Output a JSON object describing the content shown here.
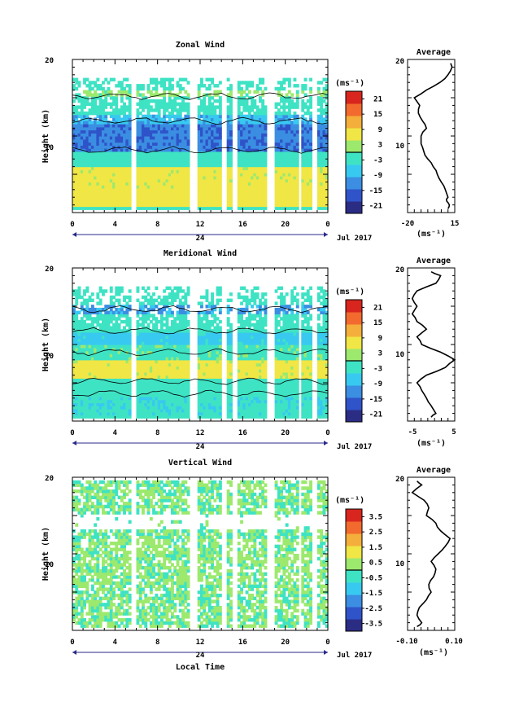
{
  "chart_data": [
    {
      "type": "heatmap",
      "title": "Zonal Wind",
      "ylabel": "Height (km)",
      "ylim": [
        0,
        20
      ],
      "xlim": [
        0,
        24
      ],
      "x_ticks": [
        "0",
        "4",
        "8",
        "12",
        "16",
        "20",
        "0"
      ],
      "y_ticks": [
        "20",
        "10"
      ],
      "date_mid": "24",
      "date_right": "Jul 2017",
      "colorbar": {
        "unit": "(ms⁻¹)",
        "ticks": [
          "21",
          "15",
          "9",
          "3",
          "-3",
          "-9",
          "-15",
          "-21"
        ],
        "range": [
          -24,
          24
        ]
      },
      "layers": [
        {
          "from": 0.5,
          "to": 3,
          "value": 7
        },
        {
          "from": 3,
          "to": 6,
          "value": 6
        },
        {
          "from": 6,
          "to": 8,
          "value": -2
        },
        {
          "from": 8,
          "to": 11.5,
          "value": -14
        },
        {
          "from": 11.5,
          "to": 12.5,
          "value": -9
        },
        {
          "from": 12.5,
          "to": 15,
          "value": -2
        },
        {
          "from": 15,
          "to": 16,
          "value": 1
        },
        {
          "from": 16,
          "to": 17.5,
          "value": -2
        }
      ],
      "profile": {
        "title": "Average",
        "xlim": [
          -20,
          15
        ],
        "x_ticks": [
          "-20",
          "15"
        ],
        "xlabel": "(ms⁻¹)",
        "points": [
          [
            10,
            0.5
          ],
          [
            11,
            1
          ],
          [
            9,
            1.5
          ],
          [
            10,
            2
          ],
          [
            8,
            3
          ],
          [
            5,
            4
          ],
          [
            2,
            5
          ],
          [
            -1,
            6
          ],
          [
            -5,
            7
          ],
          [
            -8,
            8
          ],
          [
            -10,
            9
          ],
          [
            -10,
            10
          ],
          [
            -6,
            11
          ],
          [
            -9,
            12
          ],
          [
            -12,
            13
          ],
          [
            -11,
            14
          ],
          [
            -15,
            15
          ],
          [
            -6,
            16
          ],
          [
            4,
            17
          ],
          [
            10,
            18
          ],
          [
            13,
            19
          ],
          [
            12,
            19.5
          ]
        ]
      }
    },
    {
      "type": "heatmap",
      "title": "Meridional Wind",
      "ylabel": "Height (km)",
      "ylim": [
        0,
        20
      ],
      "xlim": [
        0,
        24
      ],
      "x_ticks": [
        "0",
        "4",
        "8",
        "12",
        "16",
        "20",
        "0"
      ],
      "y_ticks": [
        "20",
        "10"
      ],
      "date_mid": "24",
      "date_right": "Jul 2017",
      "colorbar": {
        "unit": "(ms⁻¹)",
        "ticks": [
          "21",
          "15",
          "9",
          "3",
          "-3",
          "-9",
          "-15",
          "-21"
        ],
        "range": [
          -24,
          24
        ]
      },
      "layers": [
        {
          "from": 0.5,
          "to": 3,
          "value": -4
        },
        {
          "from": 3,
          "to": 5.5,
          "value": -2
        },
        {
          "from": 5.5,
          "to": 8,
          "value": 6
        },
        {
          "from": 8,
          "to": 10,
          "value": -1
        },
        {
          "from": 10,
          "to": 11.5,
          "value": -6
        },
        {
          "from": 11.5,
          "to": 14,
          "value": -3
        },
        {
          "from": 14,
          "to": 15,
          "value": -10
        },
        {
          "from": 15,
          "to": 16.5,
          "value": -2
        }
      ],
      "profile": {
        "title": "Average",
        "xlim": [
          -5,
          5
        ],
        "x_ticks": [
          "-5",
          "5"
        ],
        "xlabel": "(ms⁻¹)",
        "points": [
          [
            0,
            0.5
          ],
          [
            1,
            1
          ],
          [
            0,
            2
          ],
          [
            -1,
            3
          ],
          [
            -2,
            4
          ],
          [
            -3,
            5
          ],
          [
            -1,
            6
          ],
          [
            3,
            7
          ],
          [
            5,
            8
          ],
          [
            2,
            9
          ],
          [
            -2,
            10
          ],
          [
            -3,
            11
          ],
          [
            -1,
            12
          ],
          [
            -3,
            13
          ],
          [
            -4,
            14
          ],
          [
            -3,
            15
          ],
          [
            -4,
            16
          ],
          [
            -3,
            17
          ],
          [
            1,
            18
          ],
          [
            2,
            19
          ],
          [
            0,
            19.5
          ]
        ]
      }
    },
    {
      "type": "heatmap",
      "title": "Vertical Wind",
      "xlabel": "Local Time",
      "ylabel": "Height (km)",
      "ylim": [
        0,
        20
      ],
      "xlim": [
        0,
        24
      ],
      "x_ticks": [
        "0",
        "4",
        "8",
        "12",
        "16",
        "20",
        "0"
      ],
      "y_ticks": [
        "20",
        "10"
      ],
      "date_mid": "24",
      "date_right": "Jul 2017",
      "colorbar": {
        "unit": "(ms⁻¹)",
        "ticks": [
          "3.5",
          "2.5",
          "1.5",
          "0.5",
          "-0.5",
          "-1.5",
          "-2.5",
          "-3.5"
        ],
        "range": [
          -4,
          4
        ]
      },
      "layers": [
        {
          "from": 0.5,
          "to": 6,
          "value": 0.05
        },
        {
          "from": 6,
          "to": 12,
          "value": 0.1
        },
        {
          "from": 12,
          "to": 15,
          "value": 0.0
        },
        {
          "from": 16.5,
          "to": 19.5,
          "value": 0.05
        }
      ],
      "profile": {
        "title": "Average",
        "xlim": [
          -0.1,
          0.1
        ],
        "x_ticks": [
          "-0.10",
          "0.10"
        ],
        "xlabel": "(ms⁻¹)",
        "points": [
          [
            -0.06,
            0.5
          ],
          [
            -0.04,
            1
          ],
          [
            -0.06,
            2
          ],
          [
            -0.05,
            3
          ],
          [
            -0.02,
            4
          ],
          [
            0,
            5
          ],
          [
            -0.01,
            6
          ],
          [
            0.01,
            7
          ],
          [
            0.02,
            8
          ],
          [
            0,
            9
          ],
          [
            0.03,
            10
          ],
          [
            0.06,
            11
          ],
          [
            0.08,
            12
          ],
          [
            0.04,
            13
          ],
          [
            0.02,
            14
          ],
          [
            -0.02,
            15
          ],
          [
            -0.01,
            16
          ],
          [
            -0.03,
            17
          ],
          [
            -0.08,
            18
          ],
          [
            -0.04,
            19
          ],
          [
            -0.06,
            19.5
          ]
        ]
      }
    }
  ],
  "colormap": [
    "#2b2c84",
    "#2f53c8",
    "#3b8ee2",
    "#38c9f0",
    "#3ee3c4",
    "#9ce96e",
    "#f0e645",
    "#f4ae3b",
    "#f26a2e",
    "#d8261e"
  ],
  "contour_color": "#000000"
}
